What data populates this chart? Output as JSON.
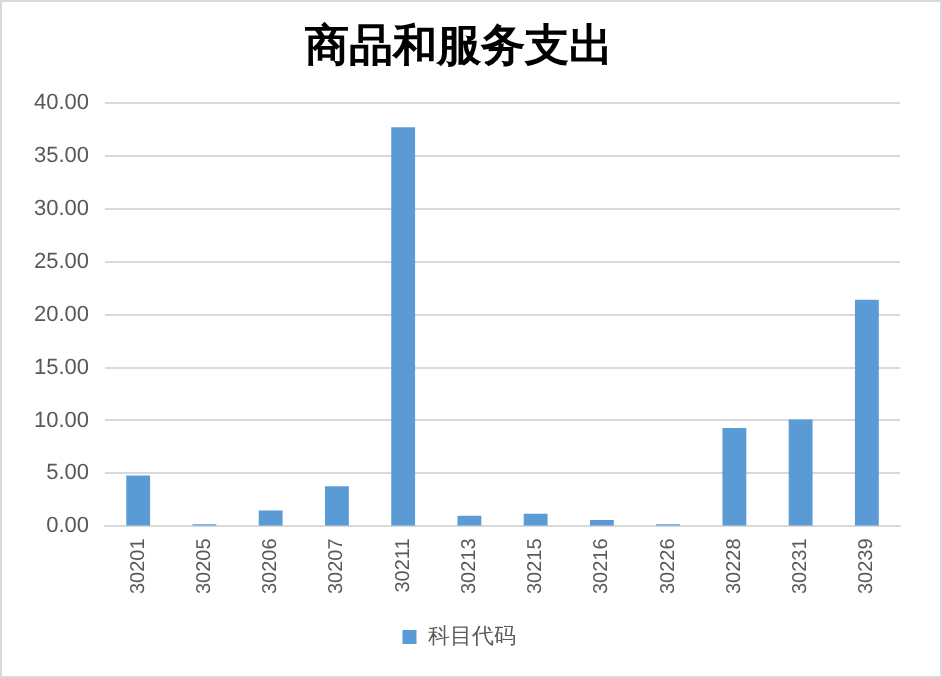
{
  "chart_data": {
    "type": "bar",
    "title": "商品和服务支出",
    "categories": [
      "30201",
      "30205",
      "30206",
      "30207",
      "30211",
      "30213",
      "30215",
      "30216",
      "30226",
      "30228",
      "30231",
      "30239"
    ],
    "series": [
      {
        "name": "科目代码",
        "color": "#5b9bd5",
        "values": [
          4.8,
          0.2,
          1.5,
          3.8,
          37.7,
          1.0,
          1.2,
          0.6,
          0.2,
          9.3,
          10.1,
          21.4
        ]
      }
    ],
    "ylim": [
      0,
      40
    ],
    "yticks": [
      {
        "value": 0,
        "label": "0.00"
      },
      {
        "value": 5,
        "label": "5.00"
      },
      {
        "value": 10,
        "label": "10.00"
      },
      {
        "value": 15,
        "label": "15.00"
      },
      {
        "value": 20,
        "label": "20.00"
      },
      {
        "value": 25,
        "label": "25.00"
      },
      {
        "value": 30,
        "label": "30.00"
      },
      {
        "value": 35,
        "label": "35.00"
      },
      {
        "value": 40,
        "label": "40.00"
      }
    ],
    "grid": "y",
    "legend": "bottom"
  }
}
